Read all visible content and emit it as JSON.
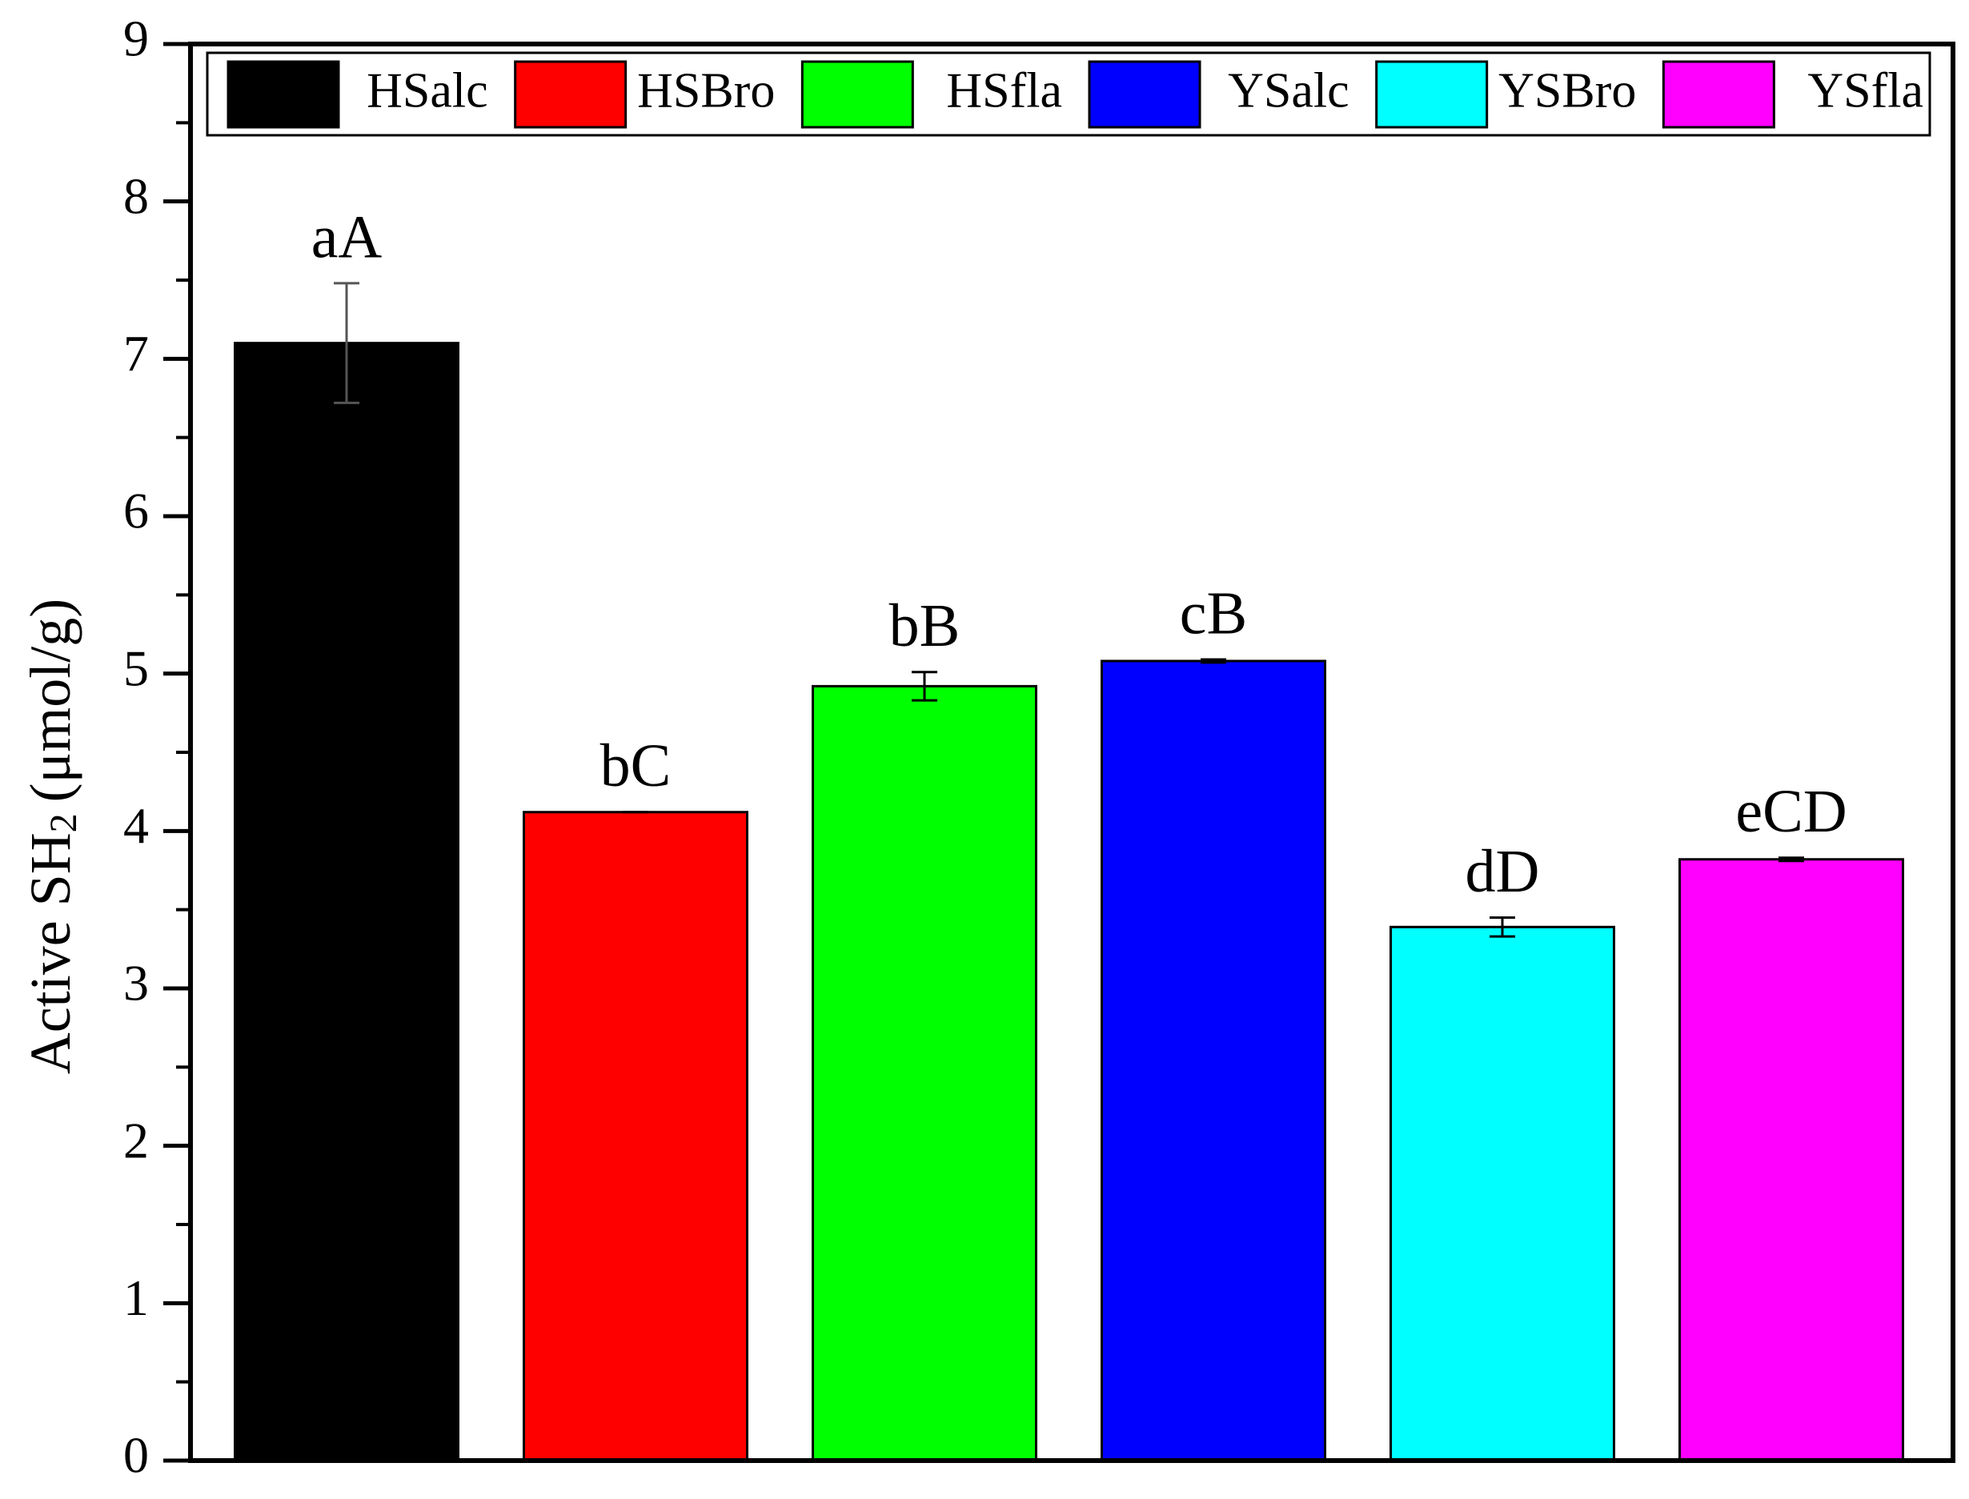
{
  "chart_data": {
    "type": "bar",
    "ylabel": {
      "text": "Active SH",
      "subscript": "2",
      "unit": "(μmol/g)"
    },
    "series": [
      {
        "name": "HSalc",
        "color": "#000000",
        "values": [
          7.1
        ],
        "errors": [
          0.38
        ]
      },
      {
        "name": "HSBro",
        "color": "#ff0000",
        "values": [
          4.12
        ],
        "errors": [
          0
        ]
      },
      {
        "name": "HSfla",
        "color": "#00ff00",
        "values": [
          4.92
        ],
        "errors": [
          0.09
        ]
      },
      {
        "name": "YSalc",
        "color": "#0000ff",
        "values": [
          5.08
        ],
        "errors": [
          0.01
        ]
      },
      {
        "name": "YSBro",
        "color": "#00ffff",
        "values": [
          3.39
        ],
        "errors": [
          0.06
        ]
      },
      {
        "name": "YSfla",
        "color": "#ff00ff",
        "values": [
          3.82
        ],
        "errors": [
          0.01
        ]
      }
    ],
    "annotations": [
      "aA",
      "bC",
      "bB",
      "cB",
      "dD",
      "eCD"
    ],
    "ylim": [
      0,
      9
    ],
    "yticks": [
      0,
      1,
      2,
      3,
      4,
      5,
      6,
      7,
      8,
      9
    ],
    "minor_yticks": [
      0.5,
      1.5,
      2.5,
      3.5,
      4.5,
      5.5,
      6.5,
      7.5,
      8.5
    ],
    "legend": "top"
  }
}
